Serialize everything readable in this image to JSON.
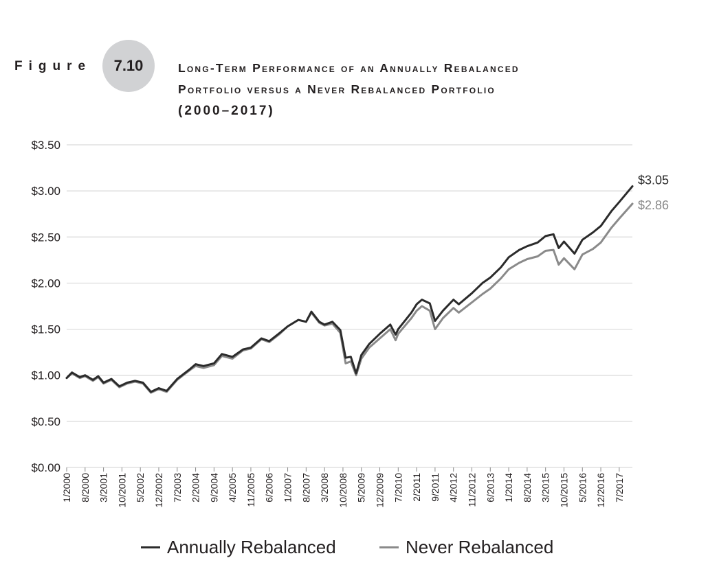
{
  "figure": {
    "word": "Figure",
    "number": "7.10",
    "title_lines": [
      "Long-Term Performance of an Annually Rebalanced",
      "Portfolio versus a Never Rebalanced Portfolio",
      "(2000–2017)"
    ]
  },
  "chart_data": {
    "type": "line",
    "title": "Long-Term Performance of an Annually Rebalanced Portfolio versus a Never Rebalanced Portfolio (2000–2017)",
    "xlabel": "",
    "ylabel": "",
    "ylim": [
      0,
      3.5
    ],
    "y_ticks": [
      "$0.00",
      "$0.50",
      "$1.00",
      "$1.50",
      "$2.00",
      "$2.50",
      "$3.00",
      "$3.50"
    ],
    "y_tick_values": [
      0,
      0.5,
      1.0,
      1.5,
      2.0,
      2.5,
      3.0,
      3.5
    ],
    "x_tick_labels": [
      "1/2000",
      "8/2000",
      "3/2001",
      "10/2001",
      "5/2002",
      "12/2002",
      "7/2003",
      "2/2004",
      "9/2004",
      "4/2005",
      "11/2005",
      "6/2006",
      "1/2007",
      "8/2007",
      "3/2008",
      "10/2008",
      "5/2009",
      "12/2009",
      "7/2010",
      "2/2011",
      "9/2011",
      "4/2012",
      "11/2012",
      "6/2013",
      "1/2014",
      "8/2014",
      "3/2015",
      "10/2015",
      "5/2016",
      "12/2016",
      "7/2017"
    ],
    "grid": "horizontal",
    "legend_position": "bottom",
    "colors": {
      "annually": "#2b2b2b",
      "never": "#8a8a8a",
      "grid": "#d9d9d9"
    },
    "end_labels": {
      "annually": "$3.05",
      "never": "$2.86"
    },
    "series": [
      {
        "name": "Annually Rebalanced",
        "key": "annually",
        "points": [
          [
            "1/2000",
            0.97
          ],
          [
            "3/2000",
            1.03
          ],
          [
            "6/2000",
            0.98
          ],
          [
            "8/2000",
            1.0
          ],
          [
            "11/2000",
            0.95
          ],
          [
            "1/2001",
            0.99
          ],
          [
            "3/2001",
            0.92
          ],
          [
            "6/2001",
            0.96
          ],
          [
            "9/2001",
            0.88
          ],
          [
            "12/2001",
            0.92
          ],
          [
            "3/2002",
            0.94
          ],
          [
            "6/2002",
            0.92
          ],
          [
            "9/2002",
            0.82
          ],
          [
            "12/2002",
            0.86
          ],
          [
            "3/2003",
            0.83
          ],
          [
            "7/2003",
            0.96
          ],
          [
            "12/2003",
            1.07
          ],
          [
            "2/2004",
            1.12
          ],
          [
            "5/2004",
            1.1
          ],
          [
            "9/2004",
            1.13
          ],
          [
            "12/2004",
            1.23
          ],
          [
            "4/2005",
            1.2
          ],
          [
            "8/2005",
            1.28
          ],
          [
            "11/2005",
            1.3
          ],
          [
            "3/2006",
            1.4
          ],
          [
            "6/2006",
            1.37
          ],
          [
            "10/2006",
            1.46
          ],
          [
            "1/2007",
            1.53
          ],
          [
            "5/2007",
            1.6
          ],
          [
            "8/2007",
            1.58
          ],
          [
            "10/2007",
            1.69
          ],
          [
            "1/2008",
            1.58
          ],
          [
            "3/2008",
            1.55
          ],
          [
            "6/2008",
            1.58
          ],
          [
            "9/2008",
            1.49
          ],
          [
            "11/2008",
            1.19
          ],
          [
            "1/2009",
            1.2
          ],
          [
            "3/2009",
            1.02
          ],
          [
            "5/2009",
            1.22
          ],
          [
            "8/2009",
            1.34
          ],
          [
            "12/2009",
            1.45
          ],
          [
            "4/2010",
            1.55
          ],
          [
            "6/2010",
            1.44
          ],
          [
            "7/2010",
            1.5
          ],
          [
            "12/2010",
            1.68
          ],
          [
            "2/2011",
            1.77
          ],
          [
            "4/2011",
            1.82
          ],
          [
            "7/2011",
            1.78
          ],
          [
            "9/2011",
            1.59
          ],
          [
            "12/2011",
            1.7
          ],
          [
            "4/2012",
            1.82
          ],
          [
            "6/2012",
            1.77
          ],
          [
            "11/2012",
            1.89
          ],
          [
            "3/2013",
            2.0
          ],
          [
            "6/2013",
            2.06
          ],
          [
            "10/2013",
            2.17
          ],
          [
            "1/2014",
            2.28
          ],
          [
            "5/2014",
            2.36
          ],
          [
            "8/2014",
            2.4
          ],
          [
            "12/2014",
            2.44
          ],
          [
            "3/2015",
            2.51
          ],
          [
            "6/2015",
            2.53
          ],
          [
            "8/2015",
            2.38
          ],
          [
            "10/2015",
            2.45
          ],
          [
            "2/2016",
            2.32
          ],
          [
            "5/2016",
            2.47
          ],
          [
            "9/2016",
            2.55
          ],
          [
            "12/2016",
            2.62
          ],
          [
            "4/2017",
            2.78
          ],
          [
            "7/2017",
            2.88
          ],
          [
            "12/2017",
            3.05
          ]
        ]
      },
      {
        "name": "Never Rebalanced",
        "key": "never",
        "points": [
          [
            "1/2000",
            0.97
          ],
          [
            "3/2000",
            1.02
          ],
          [
            "6/2000",
            0.97
          ],
          [
            "8/2000",
            0.99
          ],
          [
            "11/2000",
            0.94
          ],
          [
            "1/2001",
            0.98
          ],
          [
            "3/2001",
            0.91
          ],
          [
            "6/2001",
            0.95
          ],
          [
            "9/2001",
            0.87
          ],
          [
            "12/2001",
            0.91
          ],
          [
            "3/2002",
            0.93
          ],
          [
            "6/2002",
            0.91
          ],
          [
            "9/2002",
            0.81
          ],
          [
            "12/2002",
            0.85
          ],
          [
            "3/2003",
            0.82
          ],
          [
            "7/2003",
            0.95
          ],
          [
            "12/2003",
            1.06
          ],
          [
            "2/2004",
            1.1
          ],
          [
            "5/2004",
            1.08
          ],
          [
            "9/2004",
            1.11
          ],
          [
            "12/2004",
            1.21
          ],
          [
            "4/2005",
            1.18
          ],
          [
            "8/2005",
            1.27
          ],
          [
            "11/2005",
            1.29
          ],
          [
            "3/2006",
            1.39
          ],
          [
            "6/2006",
            1.36
          ],
          [
            "10/2006",
            1.45
          ],
          [
            "1/2007",
            1.53
          ],
          [
            "5/2007",
            1.6
          ],
          [
            "8/2007",
            1.58
          ],
          [
            "10/2007",
            1.68
          ],
          [
            "1/2008",
            1.57
          ],
          [
            "3/2008",
            1.54
          ],
          [
            "6/2008",
            1.56
          ],
          [
            "9/2008",
            1.46
          ],
          [
            "11/2008",
            1.13
          ],
          [
            "1/2009",
            1.15
          ],
          [
            "3/2009",
            1.0
          ],
          [
            "5/2009",
            1.18
          ],
          [
            "8/2009",
            1.3
          ],
          [
            "12/2009",
            1.4
          ],
          [
            "4/2010",
            1.5
          ],
          [
            "6/2010",
            1.38
          ],
          [
            "7/2010",
            1.45
          ],
          [
            "12/2010",
            1.62
          ],
          [
            "2/2011",
            1.7
          ],
          [
            "4/2011",
            1.75
          ],
          [
            "7/2011",
            1.7
          ],
          [
            "9/2011",
            1.5
          ],
          [
            "12/2011",
            1.62
          ],
          [
            "4/2012",
            1.73
          ],
          [
            "6/2012",
            1.68
          ],
          [
            "11/2012",
            1.79
          ],
          [
            "3/2013",
            1.88
          ],
          [
            "6/2013",
            1.94
          ],
          [
            "10/2013",
            2.05
          ],
          [
            "1/2014",
            2.15
          ],
          [
            "5/2014",
            2.22
          ],
          [
            "8/2014",
            2.26
          ],
          [
            "12/2014",
            2.29
          ],
          [
            "3/2015",
            2.35
          ],
          [
            "6/2015",
            2.36
          ],
          [
            "8/2015",
            2.2
          ],
          [
            "10/2015",
            2.27
          ],
          [
            "2/2016",
            2.15
          ],
          [
            "5/2016",
            2.31
          ],
          [
            "9/2016",
            2.37
          ],
          [
            "12/2016",
            2.44
          ],
          [
            "4/2017",
            2.6
          ],
          [
            "7/2017",
            2.7
          ],
          [
            "12/2017",
            2.86
          ]
        ]
      }
    ]
  },
  "legend": {
    "items": [
      {
        "label": "Annually Rebalanced",
        "color": "#2b2b2b"
      },
      {
        "label": "Never Rebalanced",
        "color": "#8a8a8a"
      }
    ]
  }
}
